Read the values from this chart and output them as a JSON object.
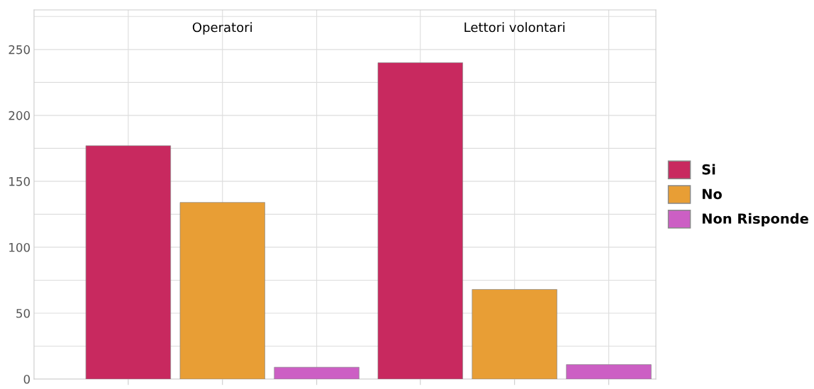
{
  "chart_data": {
    "type": "bar",
    "categories": [
      "Operatori",
      "Lettori volontari"
    ],
    "series": [
      {
        "name": "Si",
        "color": "#c8295f",
        "values": [
          177,
          240
        ]
      },
      {
        "name": "No",
        "color": "#e89e35",
        "values": [
          134,
          68
        ]
      },
      {
        "name": "Non Risponde",
        "color": "#cc5fc4",
        "values": [
          9,
          11
        ]
      }
    ],
    "ylim": [
      0,
      280
    ],
    "yticks": [
      0,
      {
        "value": 25,
        "label": null
      },
      50,
      {
        "value": 75,
        "label": null
      },
      100,
      {
        "value": 125,
        "label": null
      },
      150,
      {
        "value": 175,
        "label": null
      },
      200,
      {
        "value": 225,
        "label": null
      },
      250,
      {
        "value": 275,
        "label": null
      }
    ],
    "grid": true,
    "legend": "right"
  }
}
